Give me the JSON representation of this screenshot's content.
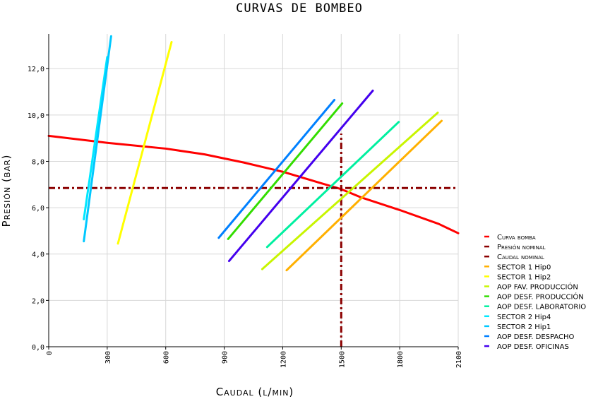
{
  "chart_data": {
    "type": "line",
    "title": "CURVAS DE BOMBEO",
    "xlabel": "Caudal (l/min)",
    "ylabel": "Presión (bar)",
    "xlim": [
      0,
      2100
    ],
    "ylim": [
      0,
      13.5
    ],
    "x_ticks": [
      0,
      300,
      600,
      900,
      1200,
      1500,
      1800,
      2100
    ],
    "x_tick_labels": [
      "0",
      "300",
      "600",
      "900",
      "1200",
      "1500",
      "1800",
      "2100"
    ],
    "y_ticks": [
      0,
      2,
      4,
      6,
      8,
      10,
      12
    ],
    "y_tick_labels": [
      "0,0",
      "2,0",
      "4,0",
      "6,0",
      "8,0",
      "10,0",
      "12,0"
    ],
    "grid": true,
    "legend_position": "right",
    "series": [
      {
        "name": "Curva bomba",
        "color": "#ff0000",
        "style": "solid",
        "smallcaps": true,
        "points": [
          [
            0,
            9.1
          ],
          [
            300,
            8.8
          ],
          [
            600,
            8.55
          ],
          [
            800,
            8.3
          ],
          [
            1000,
            7.95
          ],
          [
            1200,
            7.55
          ],
          [
            1400,
            7.05
          ],
          [
            1500,
            6.8
          ],
          [
            1600,
            6.45
          ],
          [
            1800,
            5.9
          ],
          [
            2000,
            5.3
          ],
          [
            2100,
            4.9
          ]
        ]
      },
      {
        "name": "Presión nominal",
        "color": "#8b0000",
        "style": "dashdot",
        "smallcaps": true,
        "points": [
          [
            0,
            6.85
          ],
          [
            2100,
            6.85
          ]
        ]
      },
      {
        "name": "Caudal nominal",
        "color": "#8b0000",
        "style": "dashdot",
        "smallcaps": true,
        "points": [
          [
            1500,
            0
          ],
          [
            1500,
            9.2
          ]
        ]
      },
      {
        "name": "SECTOR 1 Hip0",
        "color": "#ffb000",
        "style": "solid",
        "smallcaps": false,
        "points": [
          [
            1220,
            3.3
          ],
          [
            2015,
            9.75
          ]
        ]
      },
      {
        "name": "SECTOR 1 Hip2",
        "color": "#ffff00",
        "style": "solid",
        "smallcaps": false,
        "points": [
          [
            355,
            4.45
          ],
          [
            630,
            13.15
          ]
        ]
      },
      {
        "name": "AOP FAV. PRODUCCIÓN",
        "color": "#c8f500",
        "style": "solid",
        "smallcaps": false,
        "points": [
          [
            1095,
            3.35
          ],
          [
            1995,
            10.1
          ]
        ]
      },
      {
        "name": "AOP DESF. PRODUCCIÓN",
        "color": "#33dd00",
        "style": "solid",
        "smallcaps": false,
        "points": [
          [
            920,
            4.65
          ],
          [
            1505,
            10.5
          ]
        ]
      },
      {
        "name": "AOP DESF. LABORATORIO",
        "color": "#00f0a0",
        "style": "solid",
        "smallcaps": false,
        "points": [
          [
            1120,
            4.3
          ],
          [
            1795,
            9.7
          ]
        ]
      },
      {
        "name": "SECTOR 2 Hip4",
        "color": "#00e8ff",
        "style": "solid",
        "smallcaps": false,
        "points": [
          [
            180,
            5.5
          ],
          [
            300,
            12.5
          ]
        ]
      },
      {
        "name": "SECTOR 2 Hip1",
        "color": "#00c8ff",
        "style": "solid",
        "smallcaps": false,
        "points": [
          [
            180,
            4.55
          ],
          [
            320,
            13.4
          ]
        ]
      },
      {
        "name": "AOP DESF. DESPACHO",
        "color": "#0080ff",
        "style": "solid",
        "smallcaps": false,
        "points": [
          [
            872,
            4.7
          ],
          [
            1465,
            10.65
          ]
        ]
      },
      {
        "name": "AOP DESF. OFICINAS",
        "color": "#4400ee",
        "style": "solid",
        "smallcaps": false,
        "points": [
          [
            925,
            3.7
          ],
          [
            1662,
            11.05
          ]
        ]
      }
    ]
  }
}
